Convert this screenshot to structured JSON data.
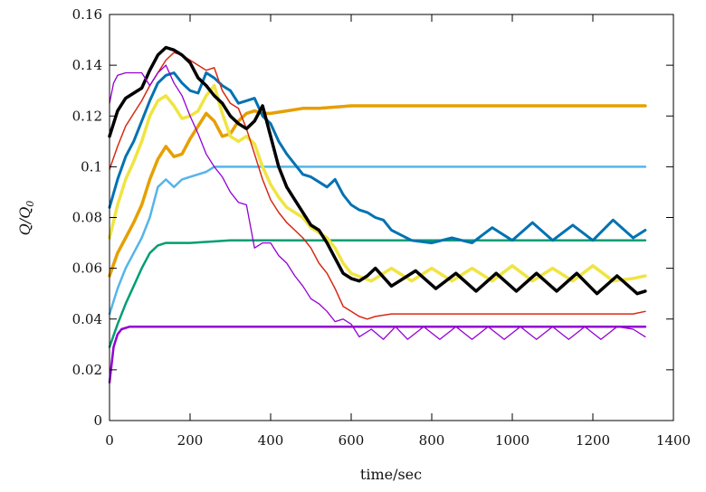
{
  "chart_data": {
    "type": "line",
    "xlabel": "time/sec",
    "ylabel": "Q/Q",
    "ylabel_subscript": "0",
    "xlim": [
      0,
      1400
    ],
    "ylim": [
      0,
      0.16
    ],
    "xticks": [
      0,
      200,
      400,
      600,
      800,
      1000,
      1200,
      1400
    ],
    "yticks": [
      0,
      0.02,
      0.04,
      0.06,
      0.08,
      0.1,
      0.12,
      0.14,
      0.16
    ],
    "xtick_labels": [
      "0",
      "200",
      "400",
      "600",
      "800",
      "1000",
      "1200",
      "1400"
    ],
    "ytick_labels": [
      "0",
      "0.02",
      "0.04",
      "0.06",
      "0.08",
      "0.1",
      "0.12",
      "0.14",
      "0.16"
    ],
    "grid": false,
    "legend": "none",
    "series": [
      {
        "color": "#9400d3",
        "width": 2.5,
        "x": [
          0,
          10,
          20,
          30,
          50,
          80,
          120,
          200,
          400,
          600,
          800,
          1000,
          1200,
          1330
        ],
        "y": [
          0.015,
          0.029,
          0.034,
          0.036,
          0.037,
          0.037,
          0.037,
          0.037,
          0.037,
          0.037,
          0.037,
          0.037,
          0.037,
          0.037
        ]
      },
      {
        "color": "#009e73",
        "width": 2.5,
        "x": [
          0,
          20,
          40,
          60,
          80,
          100,
          120,
          140,
          160,
          200,
          300,
          400,
          600,
          800,
          1000,
          1200,
          1330
        ],
        "y": [
          0.029,
          0.038,
          0.046,
          0.053,
          0.06,
          0.066,
          0.069,
          0.07,
          0.07,
          0.07,
          0.071,
          0.071,
          0.071,
          0.071,
          0.071,
          0.071,
          0.071
        ]
      },
      {
        "color": "#56b4e9",
        "width": 2.5,
        "x": [
          0,
          20,
          40,
          60,
          80,
          100,
          120,
          140,
          160,
          180,
          200,
          220,
          240,
          260,
          280,
          300,
          400,
          600,
          800,
          1000,
          1200,
          1330
        ],
        "y": [
          0.042,
          0.052,
          0.06,
          0.066,
          0.072,
          0.08,
          0.092,
          0.095,
          0.092,
          0.095,
          0.096,
          0.097,
          0.098,
          0.1,
          0.1,
          0.1,
          0.1,
          0.1,
          0.1,
          0.1,
          0.1,
          0.1
        ]
      },
      {
        "color": "#e69f00",
        "width": 3.5,
        "x": [
          0,
          20,
          40,
          60,
          80,
          100,
          120,
          140,
          160,
          180,
          200,
          220,
          240,
          260,
          280,
          300,
          320,
          340,
          360,
          380,
          400,
          440,
          480,
          520,
          600,
          800,
          1000,
          1200,
          1330
        ],
        "y": [
          0.057,
          0.066,
          0.072,
          0.078,
          0.085,
          0.095,
          0.103,
          0.108,
          0.104,
          0.105,
          0.111,
          0.116,
          0.121,
          0.118,
          0.112,
          0.113,
          0.118,
          0.121,
          0.122,
          0.121,
          0.121,
          0.122,
          0.123,
          0.123,
          0.124,
          0.124,
          0.124,
          0.124,
          0.124
        ]
      },
      {
        "color": "#f0e442",
        "width": 3.5,
        "x": [
          0,
          20,
          40,
          60,
          80,
          100,
          120,
          140,
          160,
          180,
          200,
          220,
          240,
          260,
          280,
          300,
          320,
          340,
          360,
          380,
          400,
          420,
          440,
          460,
          480,
          500,
          520,
          540,
          560,
          580,
          600,
          650,
          700,
          750,
          800,
          850,
          900,
          950,
          1000,
          1050,
          1100,
          1150,
          1200,
          1250,
          1300,
          1330
        ],
        "y": [
          0.072,
          0.085,
          0.095,
          0.102,
          0.11,
          0.12,
          0.126,
          0.128,
          0.124,
          0.119,
          0.12,
          0.122,
          0.128,
          0.132,
          0.121,
          0.112,
          0.11,
          0.112,
          0.109,
          0.1,
          0.093,
          0.088,
          0.084,
          0.082,
          0.08,
          0.076,
          0.074,
          0.072,
          0.068,
          0.062,
          0.058,
          0.055,
          0.06,
          0.055,
          0.06,
          0.055,
          0.06,
          0.055,
          0.061,
          0.055,
          0.06,
          0.055,
          0.061,
          0.055,
          0.056,
          0.057
        ]
      },
      {
        "color": "#0072b2",
        "width": 3,
        "x": [
          0,
          20,
          40,
          60,
          80,
          100,
          120,
          140,
          160,
          180,
          200,
          220,
          240,
          260,
          280,
          300,
          320,
          340,
          360,
          380,
          400,
          420,
          440,
          460,
          480,
          500,
          520,
          540,
          560,
          580,
          600,
          620,
          640,
          660,
          680,
          700,
          750,
          800,
          850,
          900,
          950,
          1000,
          1050,
          1100,
          1150,
          1200,
          1250,
          1300,
          1330
        ],
        "y": [
          0.084,
          0.095,
          0.104,
          0.11,
          0.118,
          0.126,
          0.133,
          0.136,
          0.137,
          0.133,
          0.13,
          0.129,
          0.137,
          0.135,
          0.132,
          0.13,
          0.125,
          0.126,
          0.127,
          0.12,
          0.117,
          0.11,
          0.105,
          0.101,
          0.097,
          0.096,
          0.094,
          0.092,
          0.095,
          0.089,
          0.085,
          0.083,
          0.082,
          0.08,
          0.079,
          0.075,
          0.071,
          0.07,
          0.072,
          0.07,
          0.076,
          0.071,
          0.078,
          0.071,
          0.077,
          0.071,
          0.079,
          0.072,
          0.075
        ]
      },
      {
        "color": "#d62a13",
        "width": 1.5,
        "x": [
          0,
          20,
          40,
          60,
          80,
          100,
          120,
          140,
          160,
          180,
          200,
          220,
          240,
          260,
          280,
          300,
          320,
          340,
          360,
          380,
          400,
          420,
          440,
          460,
          480,
          500,
          520,
          540,
          560,
          580,
          600,
          620,
          640,
          660,
          700,
          800,
          900,
          1000,
          1100,
          1200,
          1300,
          1330
        ],
        "y": [
          0.099,
          0.108,
          0.116,
          0.121,
          0.126,
          0.132,
          0.137,
          0.142,
          0.145,
          0.144,
          0.142,
          0.14,
          0.138,
          0.139,
          0.13,
          0.125,
          0.123,
          0.115,
          0.105,
          0.095,
          0.087,
          0.082,
          0.078,
          0.075,
          0.072,
          0.068,
          0.062,
          0.058,
          0.052,
          0.045,
          0.043,
          0.041,
          0.04,
          0.041,
          0.042,
          0.042,
          0.042,
          0.042,
          0.042,
          0.042,
          0.042,
          0.043
        ]
      },
      {
        "color": "#000000",
        "width": 3.5,
        "x": [
          0,
          20,
          40,
          60,
          80,
          100,
          120,
          140,
          160,
          180,
          200,
          220,
          240,
          260,
          280,
          300,
          320,
          340,
          360,
          380,
          400,
          420,
          440,
          460,
          480,
          500,
          520,
          540,
          560,
          580,
          600,
          620,
          640,
          660,
          700,
          760,
          810,
          860,
          910,
          960,
          1010,
          1060,
          1110,
          1160,
          1210,
          1260,
          1310,
          1330
        ],
        "y": [
          0.112,
          0.122,
          0.127,
          0.129,
          0.131,
          0.138,
          0.144,
          0.147,
          0.146,
          0.144,
          0.141,
          0.135,
          0.132,
          0.128,
          0.125,
          0.12,
          0.117,
          0.115,
          0.118,
          0.124,
          0.112,
          0.1,
          0.092,
          0.087,
          0.082,
          0.077,
          0.075,
          0.07,
          0.064,
          0.058,
          0.056,
          0.055,
          0.057,
          0.06,
          0.053,
          0.059,
          0.052,
          0.058,
          0.051,
          0.058,
          0.051,
          0.058,
          0.051,
          0.058,
          0.05,
          0.057,
          0.05,
          0.051
        ]
      },
      {
        "color": "#9400d3",
        "width": 1.3,
        "x": [
          0,
          10,
          20,
          40,
          60,
          80,
          100,
          120,
          140,
          160,
          180,
          200,
          220,
          240,
          260,
          280,
          300,
          320,
          340,
          360,
          380,
          400,
          420,
          440,
          460,
          480,
          500,
          520,
          540,
          560,
          580,
          600,
          620,
          650,
          680,
          710,
          740,
          780,
          820,
          860,
          900,
          940,
          980,
          1020,
          1060,
          1100,
          1140,
          1180,
          1220,
          1260,
          1300,
          1330
        ],
        "y": [
          0.125,
          0.133,
          0.136,
          0.137,
          0.137,
          0.137,
          0.132,
          0.137,
          0.14,
          0.133,
          0.128,
          0.12,
          0.113,
          0.105,
          0.1,
          0.096,
          0.09,
          0.086,
          0.085,
          0.068,
          0.07,
          0.07,
          0.065,
          0.062,
          0.057,
          0.053,
          0.048,
          0.046,
          0.043,
          0.039,
          0.04,
          0.038,
          0.033,
          0.036,
          0.032,
          0.037,
          0.032,
          0.037,
          0.032,
          0.037,
          0.032,
          0.037,
          0.032,
          0.037,
          0.032,
          0.037,
          0.032,
          0.037,
          0.032,
          0.037,
          0.036,
          0.033
        ]
      }
    ]
  }
}
